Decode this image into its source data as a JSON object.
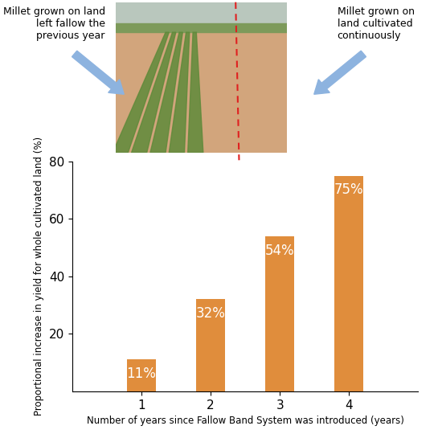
{
  "chart_data": {
    "type": "bar",
    "annotations": [
      "Millet grown on land left fallow the previous year",
      "Millet grown on land cultivated continuously"
    ],
    "x_label": "Number of years since Fallow Band System was introduced (years)",
    "y_label": "Proportional increase in yield for whole cultivated land (%)",
    "categories": [
      "1",
      "2",
      "3",
      "4"
    ],
    "values": [
      11,
      32,
      54,
      75
    ],
    "value_labels": [
      "11%",
      "32%",
      "54%",
      "75%"
    ],
    "data_labels": true,
    "color": "#e08d3c",
    "ylim": [
      0,
      80
    ],
    "yticks": [
      20,
      40,
      60,
      80
    ],
    "grid": false
  }
}
